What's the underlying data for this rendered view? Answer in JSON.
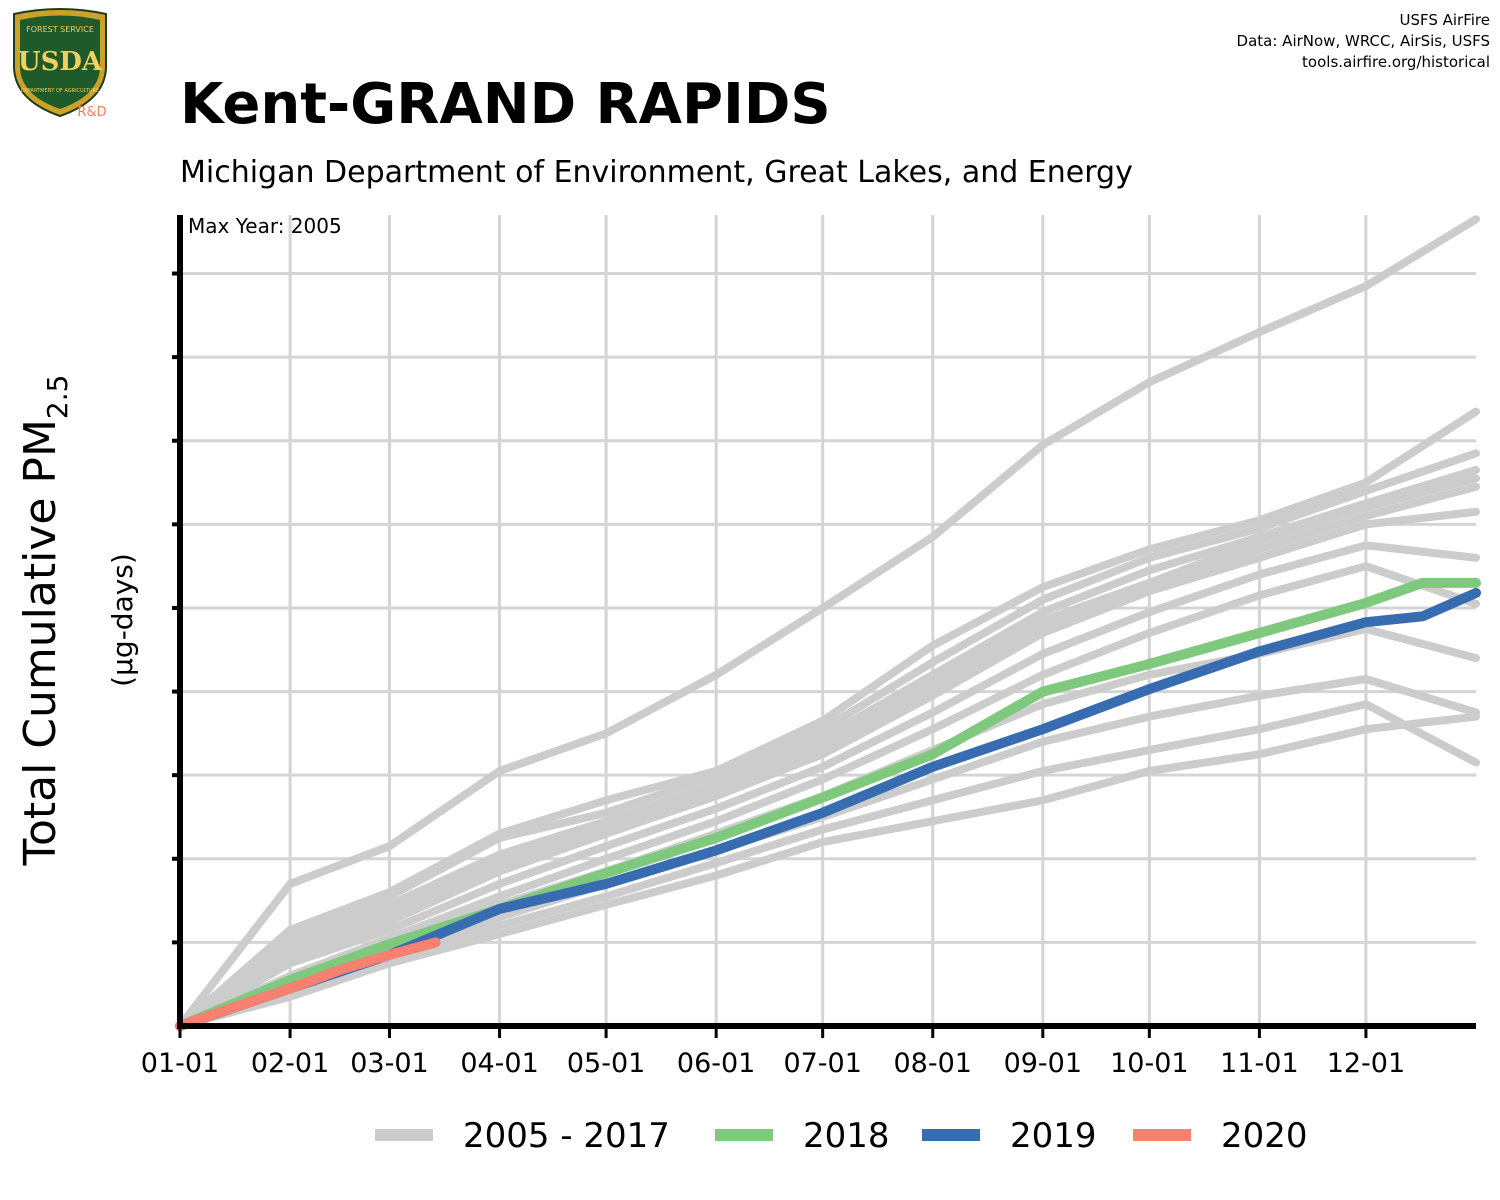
{
  "header": {
    "title": "Kent-GRAND RAPIDS",
    "subtitle": "Michigan Department of Environment, Great Lakes, and Energy",
    "credits": [
      "USFS AirFire",
      "Data: AirNow, WRCC, AirSis, USFS",
      "tools.airfire.org/historical"
    ]
  },
  "logo": {
    "top_text": "FOREST SERVICE",
    "letters": "USDA",
    "bottom_text": "DEPARTMENT OF AGRICULTURE",
    "badge": "R&D"
  },
  "chart_data": {
    "type": "line",
    "title": "Kent-GRAND RAPIDS",
    "subtitle": "Michigan Department of Environment, Great Lakes, and Energy",
    "annotation": "Max Year: 2005",
    "ylabel": "Total Cumulative PM2.5",
    "ylabel_main": "Total Cumulative PM",
    "ylabel_sub": "2.5",
    "yunit": "(µg-days)",
    "x_ticks": [
      "01-01",
      "02-01",
      "03-01",
      "04-01",
      "05-01",
      "06-01",
      "07-01",
      "08-01",
      "09-01",
      "10-01",
      "11-01",
      "12-01"
    ],
    "x_tick_days": [
      0,
      31,
      59,
      90,
      120,
      151,
      181,
      212,
      243,
      273,
      304,
      334
    ],
    "xlim": [
      0,
      365
    ],
    "ylim": [
      0,
      9.7
    ],
    "y_units_note": "relative scale: one unit = one gridline interval (no y tick labels printed)",
    "grid": true,
    "legend_position": "bottom",
    "legend": [
      {
        "label": "2005 - 2017",
        "color": "#cccccc"
      },
      {
        "label": "2018",
        "color": "#7fc97f"
      },
      {
        "label": "2019",
        "color": "#386cb0"
      },
      {
        "label": "2020",
        "color": "#f88070"
      }
    ],
    "series": [
      {
        "name": "2005 - 2017",
        "color": "#cccccc",
        "lines": [
          {
            "x": [
              0,
              31,
              59,
              90,
              120,
              151,
              181,
              212,
              243,
              273,
              304,
              334,
              365
            ],
            "y": [
              0,
              1.7,
              2.15,
              3.05,
              3.5,
              4.2,
              5.0,
              5.85,
              6.95,
              7.7,
              8.3,
              8.85,
              9.65
            ]
          },
          {
            "x": [
              0,
              31,
              59,
              90,
              120,
              151,
              181,
              212,
              243,
              273,
              304,
              334,
              365
            ],
            "y": [
              0,
              1.15,
              1.6,
              2.3,
              2.7,
              3.05,
              3.65,
              4.55,
              5.25,
              5.7,
              6.05,
              6.5,
              7.35
            ]
          },
          {
            "x": [
              0,
              31,
              59,
              90,
              120,
              151,
              181,
              212,
              243,
              273,
              304,
              334,
              365
            ],
            "y": [
              0,
              1.05,
              1.55,
              2.25,
              2.55,
              3.0,
              3.55,
              4.35,
              5.1,
              5.6,
              5.95,
              6.4,
              6.85
            ]
          },
          {
            "x": [
              0,
              31,
              59,
              90,
              120,
              151,
              181,
              212,
              243,
              273,
              304,
              334,
              365
            ],
            "y": [
              0,
              0.95,
              1.45,
              2.05,
              2.45,
              2.9,
              3.45,
              4.2,
              4.95,
              5.45,
              5.85,
              6.25,
              6.65
            ]
          },
          {
            "x": [
              0,
              31,
              59,
              90,
              120,
              151,
              181,
              212,
              243,
              273,
              304,
              334,
              365
            ],
            "y": [
              0,
              0.9,
              1.35,
              1.95,
              2.4,
              2.85,
              3.4,
              4.1,
              4.85,
              5.3,
              5.8,
              6.2,
              6.55
            ]
          },
          {
            "x": [
              0,
              31,
              59,
              90,
              120,
              151,
              181,
              212,
              243,
              273,
              304,
              334,
              365
            ],
            "y": [
              0,
              0.85,
              1.3,
              1.9,
              2.35,
              2.8,
              3.3,
              4.0,
              4.75,
              5.25,
              5.7,
              6.1,
              6.45
            ]
          },
          {
            "x": [
              0,
              31,
              59,
              90,
              120,
              151,
              181,
              212,
              243,
              273,
              304,
              334,
              365
            ],
            "y": [
              0,
              0.8,
              1.25,
              1.85,
              2.3,
              2.75,
              3.25,
              3.95,
              4.7,
              5.2,
              5.6,
              6.0,
              6.15
            ]
          },
          {
            "x": [
              0,
              31,
              59,
              90,
              120,
              151,
              181,
              212,
              243,
              273,
              304,
              334,
              365
            ],
            "y": [
              0,
              0.75,
              1.15,
              1.7,
              2.15,
              2.6,
              3.1,
              3.75,
              4.45,
              4.95,
              5.4,
              5.75,
              5.6
            ]
          },
          {
            "x": [
              0,
              31,
              59,
              90,
              120,
              151,
              181,
              212,
              243,
              273,
              304,
              334,
              365
            ],
            "y": [
              0,
              0.6,
              1.05,
              1.55,
              2.0,
              2.45,
              2.95,
              3.55,
              4.2,
              4.7,
              5.15,
              5.5,
              5.05
            ]
          },
          {
            "x": [
              0,
              31,
              59,
              90,
              120,
              151,
              181,
              212,
              243,
              273,
              304,
              334,
              365
            ],
            "y": [
              0,
              0.55,
              1.0,
              1.45,
              1.85,
              2.3,
              2.75,
              3.3,
              3.85,
              4.2,
              4.45,
              4.75,
              4.4
            ]
          },
          {
            "x": [
              0,
              31,
              59,
              90,
              120,
              151,
              181,
              212,
              243,
              273,
              304,
              334,
              365
            ],
            "y": [
              0,
              0.45,
              0.85,
              1.3,
              1.7,
              2.1,
              2.5,
              2.95,
              3.4,
              3.7,
              3.95,
              4.15,
              3.75
            ]
          },
          {
            "x": [
              0,
              31,
              59,
              90,
              120,
              151,
              181,
              212,
              243,
              273,
              304,
              334,
              365
            ],
            "y": [
              0,
              0.4,
              0.8,
              1.2,
              1.55,
              1.95,
              2.35,
              2.7,
              3.05,
              3.3,
              3.55,
              3.85,
              3.15
            ]
          },
          {
            "x": [
              0,
              31,
              59,
              90,
              120,
              151,
              181,
              212,
              243,
              273,
              304,
              334,
              365
            ],
            "y": [
              0,
              0.35,
              0.75,
              1.1,
              1.45,
              1.8,
              2.2,
              2.45,
              2.7,
              3.05,
              3.25,
              3.55,
              3.7
            ]
          }
        ]
      },
      {
        "name": "2018",
        "color": "#7fc97f",
        "lines": [
          {
            "x": [
              0,
              31,
              59,
              90,
              120,
              151,
              181,
              212,
              243,
              273,
              304,
              334,
              350,
              365
            ],
            "y": [
              0,
              0.55,
              0.98,
              1.4,
              1.83,
              2.25,
              2.73,
              3.25,
              4.0,
              4.33,
              4.7,
              5.06,
              5.3,
              5.3
            ]
          }
        ]
      },
      {
        "name": "2019",
        "color": "#386cb0",
        "lines": [
          {
            "x": [
              0,
              31,
              59,
              90,
              120,
              151,
              181,
              212,
              243,
              273,
              304,
              334,
              350,
              365
            ],
            "y": [
              0,
              0.45,
              0.85,
              1.4,
              1.7,
              2.1,
              2.55,
              3.1,
              3.55,
              4.03,
              4.48,
              4.83,
              4.9,
              5.18
            ]
          }
        ]
      },
      {
        "name": "2020",
        "color": "#f88070",
        "lines": [
          {
            "x": [
              0,
              15,
              31,
              45,
              59,
              72
            ],
            "y": [
              0,
              0.22,
              0.45,
              0.67,
              0.85,
              1.0
            ]
          }
        ]
      }
    ]
  }
}
